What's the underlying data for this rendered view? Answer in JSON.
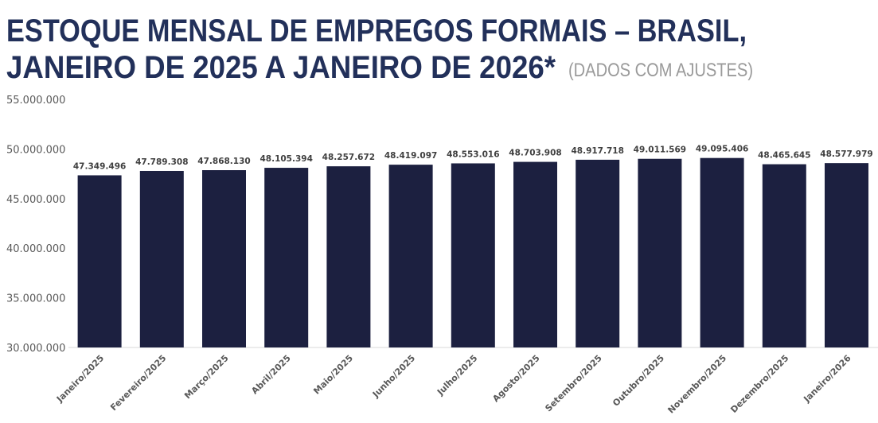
{
  "chart_data": {
    "type": "bar",
    "title_line1": "ESTOQUE MENSAL DE EMPREGOS FORMAIS – BRASIL,",
    "title_line2": "JANEIRO DE 2025 A JANEIRO DE 2026*",
    "subtitle": "(DADOS COM AJUSTES)",
    "xlabel": "",
    "ylabel": "",
    "ylim": [
      30000000,
      55000000
    ],
    "yticks": [
      "30.000.000",
      "35.000.000",
      "40.000.000",
      "45.000.000",
      "50.000.000",
      "55.000.000"
    ],
    "ytick_values": [
      30000000,
      35000000,
      40000000,
      45000000,
      50000000,
      55000000
    ],
    "grid": false,
    "bar_color": "#1c2040",
    "categories": [
      "Janeiro/2025",
      "Fevereiro/2025",
      "Março/2025",
      "Abril/2025",
      "Maio/2025",
      "Junho/2025",
      "Julho/2025",
      "Agosto/2025",
      "Setembro/2025",
      "Outubro/2025",
      "Novembro/2025",
      "Dezembro/2025",
      "Janeiro/2026"
    ],
    "values": [
      47349496,
      47789308,
      47868130,
      48105394,
      48257672,
      48419097,
      48553016,
      48703908,
      48917718,
      49011569,
      49095406,
      48465645,
      48577979
    ],
    "data_labels": [
      "47.349.496",
      "47.789.308",
      "47.868.130",
      "48.105.394",
      "48.257.672",
      "48.419.097",
      "48.553.016",
      "48.703.908",
      "48.917.718",
      "49.011.569",
      "49.095.406",
      "48.465.645",
      "48.577.979"
    ]
  }
}
